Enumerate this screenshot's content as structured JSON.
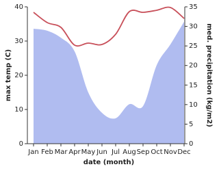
{
  "chart_data": {
    "type": "line",
    "xlabel": "date (month)",
    "ylabel": "max temp (C)",
    "y2label": "med. precipitation (kg/m2)",
    "categories": [
      "Jan",
      "Feb",
      "Mar",
      "Apr",
      "May",
      "Jun",
      "Jul",
      "Aug",
      "Sep",
      "Oct",
      "Nov",
      "Dec"
    ],
    "series": [
      {
        "name": "med. precipitation",
        "type": "area",
        "axis": "y2",
        "color": "#b0bcf0",
        "values": [
          29.4,
          28.9,
          27.1,
          23.6,
          13.1,
          7.9,
          6.5,
          10.1,
          9.6,
          20.1,
          25.4,
          31.2
        ]
      },
      {
        "name": "max temp",
        "type": "line",
        "color": "#c8505a",
        "values": [
          38.4,
          35.4,
          34,
          28.8,
          29.4,
          29,
          32,
          38.6,
          38.4,
          39,
          39.8,
          36.6
        ]
      }
    ],
    "ylim": [
      0,
      40
    ],
    "yticks": [
      0,
      10,
      20,
      30,
      40
    ],
    "y2lim": [
      0,
      35
    ],
    "y2ticks": [
      0,
      5,
      10,
      15,
      20,
      25,
      30,
      35
    ]
  }
}
